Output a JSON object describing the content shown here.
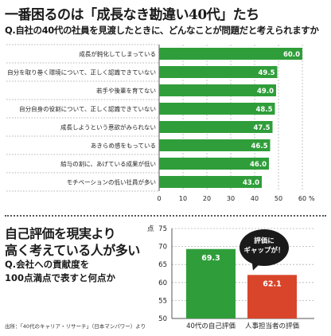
{
  "header": {
    "title": "一番困るのは「成長なき勘違い40代」たち",
    "question": "Q.自社の40代の社員を見渡したときに、どんなことが問題だと考えられますか"
  },
  "chart_data": [
    {
      "type": "bar",
      "orientation": "horizontal",
      "categories": [
        "成長が鈍化してしまっている",
        "自分を取り巻く環境について、正しく認識できていない",
        "若手や後輩を育てない",
        "自分自身の役割について、正しく認識できていない",
        "成長しようという意欲がみられない",
        "あきらめ感をもっている",
        "給与の割に、あげている成果が低い",
        "モチベーションの低い社員が多い"
      ],
      "values": [
        60.0,
        49.5,
        49.0,
        48.5,
        47.5,
        46.5,
        46.0,
        43.0
      ],
      "value_labels": [
        "60.0",
        "49.5",
        "49.0",
        "48.5",
        "47.5",
        "46.5",
        "46.0",
        "43.0"
      ],
      "xlim": [
        0,
        60
      ],
      "xticks": [
        "0",
        "10",
        "20",
        "30",
        "40",
        "50",
        "60"
      ],
      "xunit": "%",
      "bar_color": "#2f9e3a",
      "grid": true
    },
    {
      "type": "bar",
      "categories": [
        "40代の自己評価",
        "人事担当者の評価"
      ],
      "values": [
        69.3,
        62.1
      ],
      "value_labels": [
        "69.3",
        "62.1"
      ],
      "colors": [
        "#2f9e3a",
        "#d9452b"
      ],
      "ylim": [
        50,
        75
      ],
      "yticks": [
        "50",
        "55",
        "60",
        "65",
        "70",
        "75"
      ],
      "yunit": "点",
      "grid": true
    }
  ],
  "section2": {
    "title_line1": "自己評価を現実より",
    "title_line2": "高く考えている人が多い",
    "question_line1": "Q.会社への貢献度を",
    "question_line2": "100点満点で表すと何点か",
    "bubble_line1": "評価に",
    "bubble_line2": "ギャップが！"
  },
  "source": "出所：「40代のキャリア・リサーチ」（日本マンパワー）より"
}
